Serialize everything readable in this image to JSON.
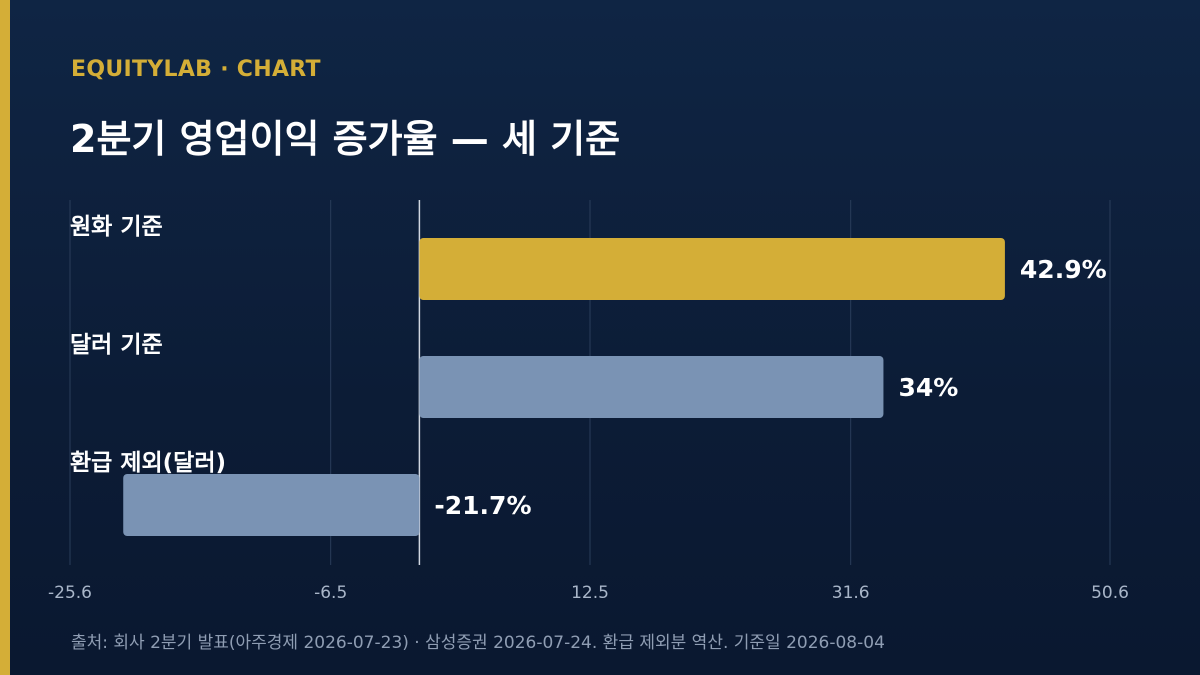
{
  "header": {
    "brand": "EQUITYLAB · CHART",
    "title": "2분기 영업이익 증가율 — 세 기준"
  },
  "footer": {
    "source": "출처: 회사 2분기 발표(아주경제 2026-07-23) · 삼성증권 2026-07-24. 환급 제외분 역산. 기준일 2026-08-04"
  },
  "colors": {
    "background": "#0d1f3a",
    "accent": "#d4ae37",
    "bar_highlight": "#d4ae37",
    "bar_default": "#7a93b4",
    "grid": "#2a3d5a",
    "zero_line": "#d0d6e0",
    "tick_text": "#a9b6c9",
    "label_text": "#ffffff"
  },
  "chart_data": {
    "type": "bar",
    "orientation": "horizontal",
    "categories": [
      "원화 기준",
      "달러 기준",
      "환급 제외(달러)"
    ],
    "values": [
      42.9,
      34,
      -21.7
    ],
    "value_labels": [
      "42.9%",
      "34%",
      "-21.7%"
    ],
    "highlight_index": 0,
    "xlim": [
      -25.6,
      50.6
    ],
    "x_ticks": [
      -25.6,
      -6.5,
      12.5,
      31.6,
      50.6
    ],
    "x_tick_labels": [
      "-25.6",
      "-6.5",
      "12.5",
      "31.6",
      "50.6"
    ],
    "grid": true,
    "title": "2분기 영업이익 증가율 — 세 기준",
    "xlabel": "",
    "ylabel": ""
  }
}
